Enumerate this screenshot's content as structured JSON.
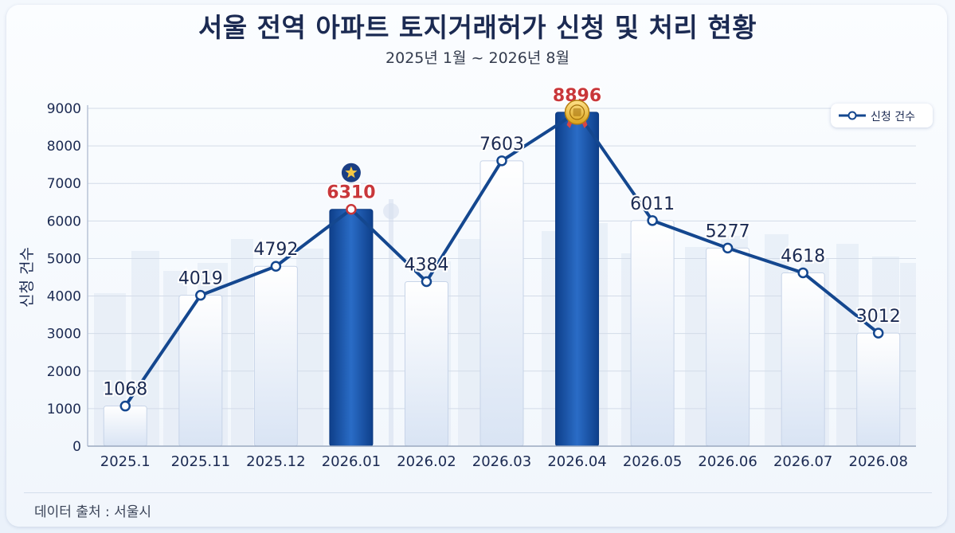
{
  "title": "서울 전역 아파트 토지거래허가 신청 및 처리 현황",
  "subtitle": "2025년 1월 ~ 2026년 8월",
  "source": "데이터 출처 : 서울시",
  "colors": {
    "line": "#14478f",
    "bar_light": "#e6edf8",
    "bar_highlight": "#1b5bb5",
    "highlight_label": "#c9373a",
    "label": "#1b2a52"
  },
  "chart_data": {
    "type": "bar",
    "categories": [
      "2025.1",
      "2025.11",
      "2025.12",
      "2026.01",
      "2026.02",
      "2026.03",
      "2026.04",
      "2026.05",
      "2026.06",
      "2026.07",
      "2026.08"
    ],
    "series": [
      {
        "name": "신청 건수",
        "values": [
          1068,
          4019,
          4792,
          6310,
          4384,
          7603,
          8896,
          6011,
          5277,
          4618,
          3012
        ]
      }
    ],
    "highlighted": [
      "2026.01",
      "2026.04"
    ],
    "highlight_icons": {
      "2026.01": "star-icon",
      "2026.04": "medal-icon"
    },
    "ylabel": "신청 건수",
    "xlabel": "",
    "ylim": [
      0,
      9000
    ],
    "yticks": [
      0,
      1000,
      2000,
      3000,
      4000,
      5000,
      6000,
      7000,
      8000,
      9000
    ],
    "grid": true,
    "legend": "top-right",
    "overlay": "line"
  }
}
